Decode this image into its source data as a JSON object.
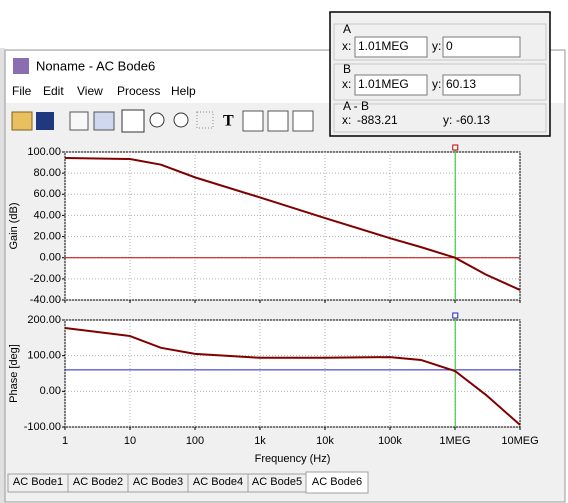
{
  "window": {
    "title": "Noname - AC Bode6"
  },
  "menu": [
    "File",
    "Edit",
    "View",
    "Process",
    "Help"
  ],
  "cursor_panel": {
    "a": {
      "label": "A",
      "x_label": "x:",
      "x": "1.01MEG",
      "y_label": "y:",
      "y": "0"
    },
    "b": {
      "label": "B",
      "x_label": "x:",
      "x": "1.01MEG",
      "y_label": "y:",
      "y": "60.13"
    },
    "diff": {
      "label": "A - B",
      "x_label": "x:",
      "x": "-883.21",
      "y_label": "y:",
      "y": "-60.13"
    }
  },
  "chart_data": [
    {
      "type": "line",
      "ylabel": "Gain (dB)",
      "xscale": "log",
      "grid": true,
      "xlim": [
        1,
        10000000
      ],
      "ylim": [
        -40,
        100
      ],
      "yticks": [
        {
          "value": 100,
          "label": "100.00"
        },
        {
          "value": 80,
          "label": "80.00"
        },
        {
          "value": 60,
          "label": "60.00"
        },
        {
          "value": 40,
          "label": "40.00"
        },
        {
          "value": 20,
          "label": "20.00"
        },
        {
          "value": 0,
          "label": "0.00"
        },
        {
          "value": -20,
          "label": "-20.00"
        },
        {
          "value": -40,
          "label": "-40.00"
        }
      ],
      "x": [
        1,
        10,
        30,
        100,
        1000,
        10000,
        100000,
        300000,
        1000000,
        3000000,
        10000000
      ],
      "series": [
        {
          "color": "#800000",
          "values": [
            94.3,
            93.4,
            88,
            76,
            57,
            37.5,
            18.5,
            10,
            0,
            -16,
            -30.5
          ]
        }
      ],
      "cursor": {
        "x": 1010000,
        "y": 0,
        "color": "#c00000"
      }
    },
    {
      "type": "line",
      "ylabel": "Phase [deg]",
      "xlabel": "Frequency (Hz)",
      "xscale": "log",
      "grid": true,
      "xlim": [
        1,
        10000000
      ],
      "xticks": [
        1,
        10,
        100,
        {
          "value": 1000,
          "label": "1k"
        },
        {
          "value": 10000,
          "label": "10k"
        },
        {
          "value": 100000,
          "label": "100k"
        },
        {
          "value": 1000000,
          "label": "1MEG"
        },
        {
          "value": 10000000,
          "label": "10MEG"
        }
      ],
      "ylim": [
        -100,
        200
      ],
      "yticks": [
        {
          "value": 200,
          "label": "200.00"
        },
        {
          "value": 100,
          "label": "100.00"
        },
        {
          "value": 0,
          "label": "0.00"
        },
        {
          "value": -100,
          "label": "-100.00"
        }
      ],
      "x": [
        1,
        10,
        30,
        100,
        1000,
        10000,
        100000,
        300000,
        1000000,
        3000000,
        10000000
      ],
      "series": [
        {
          "color": "#800000",
          "values": [
            177.6,
            155,
            122,
            105,
            94,
            94,
            96,
            88,
            57,
            -10,
            -94
          ]
        }
      ],
      "cursor": {
        "x": 1010000,
        "y": 60.13,
        "color": "#2020c0"
      }
    }
  ],
  "tabs": [
    "AC Bode1",
    "AC Bode2",
    "AC Bode3",
    "AC Bode4",
    "AC Bode5",
    "AC Bode6"
  ]
}
